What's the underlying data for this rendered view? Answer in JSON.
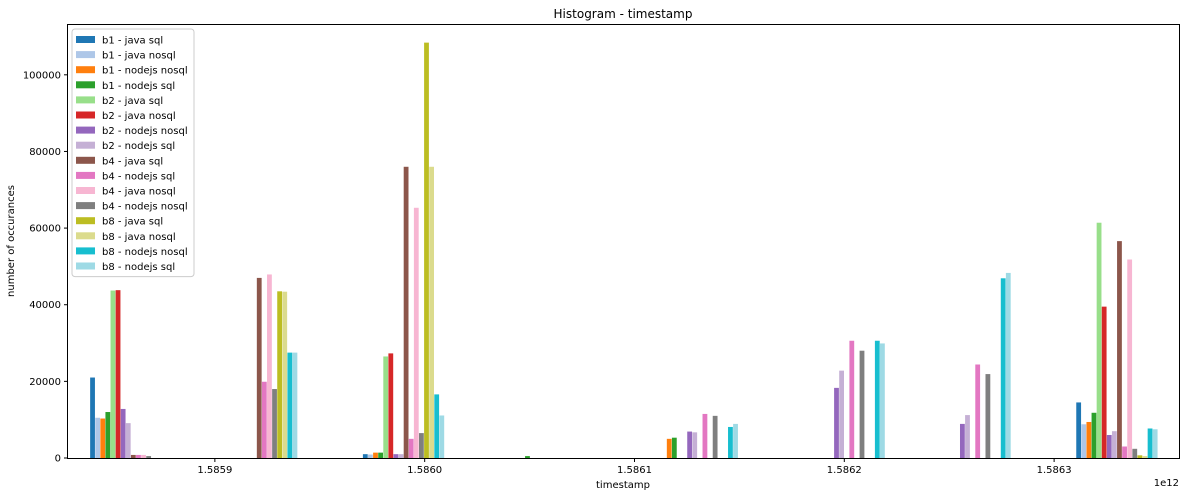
{
  "chart_data": {
    "type": "bar",
    "title": "Histogram - timestamp",
    "xlabel": "timestamp",
    "ylabel": "number of occurances",
    "x_offset_text": "1e12",
    "x_ticks": [
      {
        "value": 1.5859,
        "label": "1.5859"
      },
      {
        "value": 1.586,
        "label": "1.5860"
      },
      {
        "value": 1.5861,
        "label": "1.5861"
      },
      {
        "value": 1.5862,
        "label": "1.5862"
      },
      {
        "value": 1.5863,
        "label": "1.5863"
      }
    ],
    "y_ticks": [
      0,
      20000,
      40000,
      60000,
      80000,
      100000
    ],
    "xlim": [
      1.58583,
      1.58636
    ],
    "ylim": [
      0,
      113000
    ],
    "grid": false,
    "legend_position": "top-left",
    "bin_edges": [
      1.58586,
      1.58592,
      1.58599,
      1.58606,
      1.58613,
      1.5862,
      1.58626,
      1.58633
    ],
    "series": [
      {
        "name": "b1 - java sql",
        "color": "#1f77b4",
        "values": [
          21000,
          0,
          1000,
          0,
          0,
          0,
          0,
          14500
        ]
      },
      {
        "name": "b1 - java nosql",
        "color": "#aec7e8",
        "values": [
          10500,
          0,
          900,
          0,
          0,
          0,
          0,
          8800
        ]
      },
      {
        "name": "b1 - nodejs nosql",
        "color": "#ff7f0e",
        "values": [
          10300,
          0,
          1400,
          0,
          5000,
          0,
          0,
          9400
        ]
      },
      {
        "name": "b1 - nodejs sql",
        "color": "#2ca02c",
        "values": [
          12000,
          0,
          1400,
          500,
          5300,
          0,
          0,
          11800
        ]
      },
      {
        "name": "b2 - java sql",
        "color": "#98df8a",
        "values": [
          43700,
          0,
          26500,
          0,
          0,
          0,
          0,
          61400
        ]
      },
      {
        "name": "b2 - java nosql",
        "color": "#d62728",
        "values": [
          43800,
          0,
          27300,
          0,
          0,
          0,
          0,
          39500
        ]
      },
      {
        "name": "b2 - nodejs nosql",
        "color": "#9467bd",
        "values": [
          12800,
          0,
          1000,
          0,
          6900,
          18300,
          8900,
          6000
        ]
      },
      {
        "name": "b2 - nodejs sql",
        "color": "#c5b0d5",
        "values": [
          9100,
          0,
          1000,
          0,
          6700,
          22800,
          11200,
          7000
        ]
      },
      {
        "name": "b4 - java sql",
        "color": "#8c564b",
        "values": [
          800,
          47000,
          76000,
          0,
          0,
          0,
          0,
          56600
        ]
      },
      {
        "name": "b4 - nodejs sql",
        "color": "#e377c2",
        "values": [
          800,
          19900,
          5000,
          0,
          11500,
          30600,
          24400,
          3000
        ]
      },
      {
        "name": "b4 - java nosql",
        "color": "#f7b6d2",
        "values": [
          800,
          47900,
          65300,
          0,
          0,
          0,
          0,
          51800
        ]
      },
      {
        "name": "b4 - nodejs nosql",
        "color": "#7f7f7f",
        "values": [
          500,
          18000,
          6500,
          0,
          11000,
          28000,
          21900,
          2400
        ]
      },
      {
        "name": "b8 - java sql",
        "color": "#bcbd22",
        "values": [
          0,
          43500,
          108400,
          0,
          0,
          0,
          0,
          700
        ]
      },
      {
        "name": "b8 - java nosql",
        "color": "#dbdb8d",
        "values": [
          0,
          43400,
          76000,
          0,
          0,
          0,
          0,
          500
        ]
      },
      {
        "name": "b8 - nodejs nosql",
        "color": "#17becf",
        "values": [
          0,
          27500,
          16600,
          0,
          8100,
          30600,
          46900,
          7700
        ]
      },
      {
        "name": "b8 - nodejs sql",
        "color": "#9edae5",
        "values": [
          0,
          27500,
          11100,
          0,
          8900,
          29900,
          48300,
          7500
        ]
      }
    ]
  }
}
